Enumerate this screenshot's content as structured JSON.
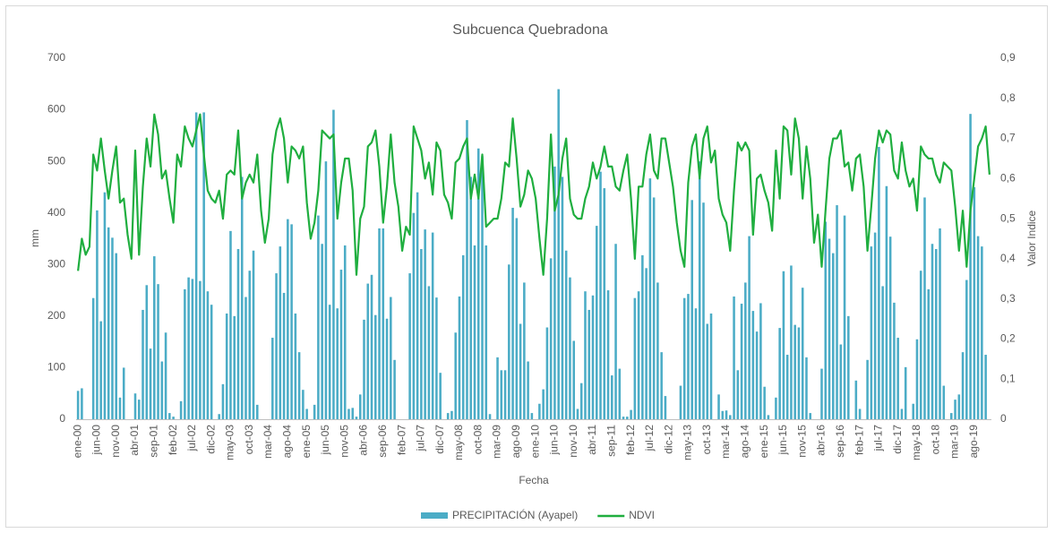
{
  "chart_data": {
    "type": "bar-line",
    "title": "Subcuenca Quebradona",
    "x_label": "Fecha",
    "y_label": "mm",
    "y2_label": "Valor Indice",
    "categories": [
      "ene-00",
      null,
      null,
      null,
      null,
      "jun-00",
      null,
      null,
      null,
      null,
      "nov-00",
      null,
      null,
      null,
      null,
      "abr-01",
      null,
      null,
      null,
      null,
      "sep-01",
      null,
      null,
      null,
      null,
      "feb-02",
      null,
      null,
      null,
      null,
      "jul-02",
      null,
      null,
      null,
      null,
      "dic-02",
      null,
      null,
      null,
      null,
      "may-03",
      null,
      null,
      null,
      null,
      "oct-03",
      null,
      null,
      null,
      null,
      "mar-04",
      null,
      null,
      null,
      null,
      "ago-04",
      null,
      null,
      null,
      null,
      "ene-05",
      null,
      null,
      null,
      null,
      "jun-05",
      null,
      null,
      null,
      null,
      "nov-05",
      null,
      null,
      null,
      null,
      "abr-06",
      null,
      null,
      null,
      null,
      "sep-06",
      null,
      null,
      null,
      null,
      "feb-07",
      null,
      null,
      null,
      null,
      "jul-07",
      null,
      null,
      null,
      null,
      "dic-07",
      null,
      null,
      null,
      null,
      "may-08",
      null,
      null,
      null,
      null,
      "oct-08",
      null,
      null,
      null,
      null,
      "mar-09",
      null,
      null,
      null,
      null,
      "ago-09",
      null,
      null,
      null,
      null,
      "ene-10",
      null,
      null,
      null,
      null,
      "jun-10",
      null,
      null,
      null,
      null,
      "nov-10",
      null,
      null,
      null,
      null,
      "abr-11",
      null,
      null,
      null,
      null,
      "sep-11",
      null,
      null,
      null,
      null,
      "feb-12",
      null,
      null,
      null,
      null,
      "jul-12",
      null,
      null,
      null,
      null,
      "dic-12",
      null,
      null,
      null,
      null,
      "may-13",
      null,
      null,
      null,
      null,
      "oct-13",
      null,
      null,
      null,
      null,
      "mar-14",
      null,
      null,
      null,
      null,
      "ago-14",
      null,
      null,
      null,
      null,
      "ene-15",
      null,
      null,
      null,
      null,
      "jun-15",
      null,
      null,
      null,
      null,
      "nov-15",
      null,
      null,
      null,
      null,
      "abr-16",
      null,
      null,
      null,
      null,
      "sep-16",
      null,
      null,
      null,
      null,
      "feb-17",
      null,
      null,
      null,
      null,
      "jul-17",
      null,
      null,
      null,
      null,
      "dic-17",
      null,
      null,
      null,
      null,
      "may-18",
      null,
      null,
      null,
      null,
      "oct-18",
      null,
      null,
      null,
      null,
      "mar-19",
      null,
      null,
      null,
      null,
      "ago-19",
      null,
      null,
      null,
      null
    ],
    "series": [
      {
        "name": "PRECIPITACIÓN (Ayapel)",
        "type": "bar",
        "color": "#4bacc6",
        "values": [
          55,
          60,
          0,
          0,
          235,
          405,
          190,
          440,
          372,
          352,
          322,
          42,
          100,
          0,
          0,
          50,
          38,
          212,
          260,
          137,
          316,
          262,
          112,
          168,
          12,
          5,
          0,
          35,
          252,
          275,
          272,
          595,
          268,
          595,
          248,
          222,
          0,
          10,
          68,
          205,
          365,
          200,
          330,
          470,
          237,
          288,
          327,
          28,
          0,
          0,
          0,
          158,
          283,
          335,
          245,
          388,
          378,
          205,
          130,
          57,
          20,
          0,
          28,
          395,
          340,
          500,
          222,
          600,
          215,
          290,
          337,
          20,
          22,
          5,
          48,
          193,
          263,
          280,
          202,
          370,
          370,
          195,
          237,
          115,
          0,
          0,
          0,
          283,
          400,
          440,
          330,
          368,
          258,
          362,
          236,
          90,
          0,
          12,
          16,
          168,
          238,
          318,
          580,
          470,
          337,
          525,
          510,
          337,
          10,
          0,
          120,
          95,
          95,
          300,
          410,
          390,
          185,
          265,
          112,
          12,
          0,
          30,
          58,
          178,
          312,
          490,
          640,
          470,
          327,
          275,
          152,
          20,
          70,
          248,
          212,
          240,
          375,
          480,
          448,
          250,
          85,
          340,
          98,
          5,
          5,
          18,
          235,
          248,
          318,
          293,
          467,
          430,
          265,
          130,
          45,
          0,
          0,
          0,
          65,
          235,
          243,
          425,
          215,
          500,
          420,
          185,
          205,
          0,
          48,
          16,
          17,
          8,
          238,
          95,
          224,
          265,
          355,
          210,
          170,
          225,
          63,
          8,
          0,
          42,
          177,
          287,
          125,
          298,
          183,
          178,
          255,
          120,
          12,
          0,
          0,
          98,
          383,
          350,
          322,
          415,
          145,
          395,
          200,
          0,
          75,
          20,
          0,
          115,
          335,
          362,
          528,
          258,
          452,
          354,
          226,
          158,
          20,
          101,
          0,
          30,
          155,
          288,
          430,
          252,
          340,
          330,
          370,
          65,
          0,
          12,
          38,
          48,
          130,
          270,
          592,
          450,
          355,
          335,
          125,
          0
        ]
      },
      {
        "name": "NDVI",
        "type": "line",
        "axis": "y2",
        "color": "#1fae3f",
        "values": [
          0.37,
          0.45,
          0.41,
          0.43,
          0.66,
          0.62,
          0.7,
          0.62,
          0.55,
          0.62,
          0.68,
          0.54,
          0.55,
          0.46,
          0.4,
          0.67,
          0.41,
          0.58,
          0.7,
          0.63,
          0.76,
          0.71,
          0.6,
          0.62,
          0.55,
          0.49,
          0.66,
          0.63,
          0.73,
          0.7,
          0.68,
          0.72,
          0.76,
          0.66,
          0.57,
          0.55,
          0.54,
          0.57,
          0.5,
          0.61,
          0.62,
          0.61,
          0.72,
          0.55,
          0.59,
          0.61,
          0.59,
          0.66,
          0.52,
          0.44,
          0.5,
          0.66,
          0.72,
          0.75,
          0.7,
          0.59,
          0.68,
          0.67,
          0.65,
          0.68,
          0.54,
          0.45,
          0.49,
          0.57,
          0.72,
          0.71,
          0.7,
          0.71,
          0.5,
          0.59,
          0.65,
          0.65,
          0.57,
          0.36,
          0.5,
          0.53,
          0.68,
          0.69,
          0.72,
          0.63,
          0.49,
          0.58,
          0.71,
          0.59,
          0.53,
          0.42,
          0.48,
          0.46,
          0.73,
          0.7,
          0.67,
          0.6,
          0.64,
          0.56,
          0.69,
          0.67,
          0.56,
          0.54,
          0.5,
          0.64,
          0.65,
          0.68,
          0.7,
          0.55,
          0.61,
          0.55,
          0.66,
          0.48,
          0.49,
          0.5,
          0.5,
          0.55,
          0.64,
          0.63,
          0.75,
          0.65,
          0.53,
          0.56,
          0.62,
          0.6,
          0.55,
          0.45,
          0.36,
          0.5,
          0.71,
          0.52,
          0.56,
          0.65,
          0.7,
          0.55,
          0.51,
          0.5,
          0.5,
          0.55,
          0.58,
          0.64,
          0.6,
          0.63,
          0.68,
          0.63,
          0.63,
          0.58,
          0.57,
          0.62,
          0.66,
          0.55,
          0.4,
          0.58,
          0.58,
          0.66,
          0.71,
          0.62,
          0.6,
          0.7,
          0.7,
          0.64,
          0.58,
          0.49,
          0.42,
          0.38,
          0.59,
          0.68,
          0.71,
          0.6,
          0.7,
          0.73,
          0.64,
          0.67,
          0.55,
          0.51,
          0.49,
          0.42,
          0.57,
          0.69,
          0.67,
          0.69,
          0.67,
          0.46,
          0.6,
          0.61,
          0.57,
          0.54,
          0.47,
          0.67,
          0.55,
          0.73,
          0.72,
          0.61,
          0.75,
          0.7,
          0.55,
          0.68,
          0.6,
          0.44,
          0.51,
          0.38,
          0.52,
          0.65,
          0.7,
          0.7,
          0.72,
          0.63,
          0.64,
          0.57,
          0.65,
          0.66,
          0.58,
          0.42,
          0.53,
          0.65,
          0.72,
          0.69,
          0.72,
          0.71,
          0.62,
          0.6,
          0.69,
          0.62,
          0.58,
          0.6,
          0.52,
          0.68,
          0.66,
          0.65,
          0.65,
          0.61,
          0.59,
          0.64,
          0.63,
          0.62,
          0.53,
          0.42,
          0.52,
          0.38,
          0.52,
          0.6,
          0.68,
          0.7,
          0.73,
          0.61
        ]
      }
    ],
    "ylim": [
      0,
      700
    ],
    "yticks": [
      0,
      100,
      200,
      300,
      400,
      500,
      600,
      700
    ],
    "y2lim": [
      0,
      0.9
    ],
    "y2ticks": [
      0,
      {
        "value": 0.1,
        "label": "0,1"
      },
      {
        "value": 0.2,
        "label": "0,2"
      },
      {
        "value": 0.3,
        "label": "0,3"
      },
      {
        "value": 0.4,
        "label": "0,4"
      },
      {
        "value": 0.5,
        "label": "0,5"
      },
      {
        "value": 0.6,
        "label": "0,6"
      },
      {
        "value": 0.7,
        "label": "0,7"
      },
      {
        "value": 0.8,
        "label": "0,8"
      },
      {
        "value": 0.9,
        "label": "0,9"
      }
    ],
    "grid": false,
    "legend": "bottom"
  }
}
